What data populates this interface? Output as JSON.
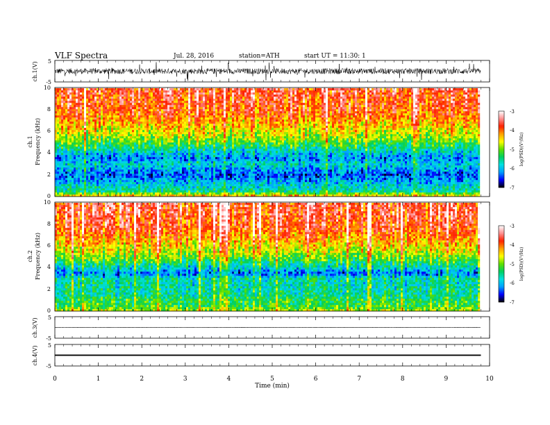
{
  "header": {
    "title": "VLF Spectra",
    "date": "Jul. 28, 2016",
    "station": "station=ATH",
    "start": "start UT =  11:30: 1"
  },
  "chart_data": [
    {
      "id": "ch1-waveform",
      "type": "line",
      "ylabel": "ch.1(V)",
      "ylim": [
        -5,
        5
      ],
      "yticks": [
        "5",
        "-5"
      ],
      "xlim": [
        0,
        10
      ],
      "data_until_min": 9.8,
      "trace": "dense noisy waveform centred near 0 V, amplitude about ±2 V with spikes"
    },
    {
      "id": "ch1-spectrogram",
      "type": "heatmap",
      "ylabel_top": "ch.1",
      "ylabel": "Frequency (kHz)",
      "ylim": [
        0,
        10
      ],
      "yticks": [
        "0",
        "2",
        "4",
        "6",
        "8",
        "10"
      ],
      "xlim": [
        0,
        10
      ],
      "colorbar": {
        "label": "log(PSD)(V²/Hz)",
        "ticks": [
          "-3",
          "-4",
          "-5",
          "-6",
          "-7"
        ],
        "range": [
          -7,
          -3
        ]
      },
      "band_profile_khz": [
        0,
        0.5,
        1,
        1.5,
        2,
        2.5,
        3,
        3.5,
        4,
        4.5,
        5,
        5.5,
        6,
        6.5,
        7,
        7.5,
        8,
        8.5,
        9,
        9.5,
        10
      ],
      "band_profile_log_psd": [
        -4.2,
        -5.6,
        -5.8,
        -6.1,
        -6.4,
        -6.1,
        -5.8,
        -6.2,
        -5.9,
        -5.5,
        -5.1,
        -4.8,
        -4.6,
        -4.4,
        -4.2,
        -4.0,
        -3.9,
        -3.8,
        -3.8,
        -3.7,
        -3.7
      ]
    },
    {
      "id": "ch2-spectrogram",
      "type": "heatmap",
      "ylabel_top": "ch.2",
      "ylabel": "Frequency (kHz)",
      "ylim": [
        0,
        10
      ],
      "yticks": [
        "0",
        "2",
        "4",
        "6",
        "8",
        "10"
      ],
      "xlim": [
        0,
        10
      ],
      "colorbar": {
        "label": "log(PSD)(V²/Hz)",
        "ticks": [
          "-3",
          "-4",
          "-5",
          "-6",
          "-7"
        ],
        "range": [
          -7,
          -3
        ]
      },
      "band_profile_khz": [
        0,
        0.5,
        1,
        1.5,
        2,
        2.5,
        3,
        3.5,
        4,
        4.5,
        5,
        5.5,
        6,
        6.5,
        7,
        7.5,
        8,
        8.5,
        9,
        9.5,
        10
      ],
      "band_profile_log_psd": [
        -4.8,
        -5.2,
        -5.3,
        -5.6,
        -5.6,
        -5.7,
        -5.6,
        -6.3,
        -5.8,
        -5.4,
        -5.0,
        -4.7,
        -4.5,
        -4.3,
        -4.1,
        -3.9,
        -3.8,
        -3.8,
        -3.7,
        -3.7,
        -3.7
      ]
    },
    {
      "id": "ch3-waveform",
      "type": "line",
      "ylabel": "ch.3(V)",
      "ylim": [
        -5,
        5
      ],
      "yticks": [
        "5",
        "-5"
      ],
      "xlim": [
        0,
        10
      ],
      "data_until_min": 9.8,
      "trace": "flat line near 0 V"
    },
    {
      "id": "ch4-waveform",
      "type": "line",
      "ylabel": "ch.4(V)",
      "ylim": [
        -5,
        5
      ],
      "yticks": [
        "5",
        "-5"
      ],
      "xlim": [
        0,
        10
      ],
      "data_until_min": 9.8,
      "trace": "thick flat band near 0 V"
    }
  ],
  "xaxis": {
    "label": "Time (min)",
    "ticks": [
      "0",
      "1",
      "2",
      "3",
      "4",
      "5",
      "6",
      "7",
      "8",
      "9",
      "10"
    ],
    "range": [
      0,
      10
    ]
  },
  "colors": {
    "colormap": [
      "#000000",
      "#0000ff",
      "#00a0ff",
      "#00e0e0",
      "#00d060",
      "#60e000",
      "#ffff00",
      "#ffa000",
      "#ff2000",
      "#ff9090",
      "#ffffff"
    ]
  }
}
